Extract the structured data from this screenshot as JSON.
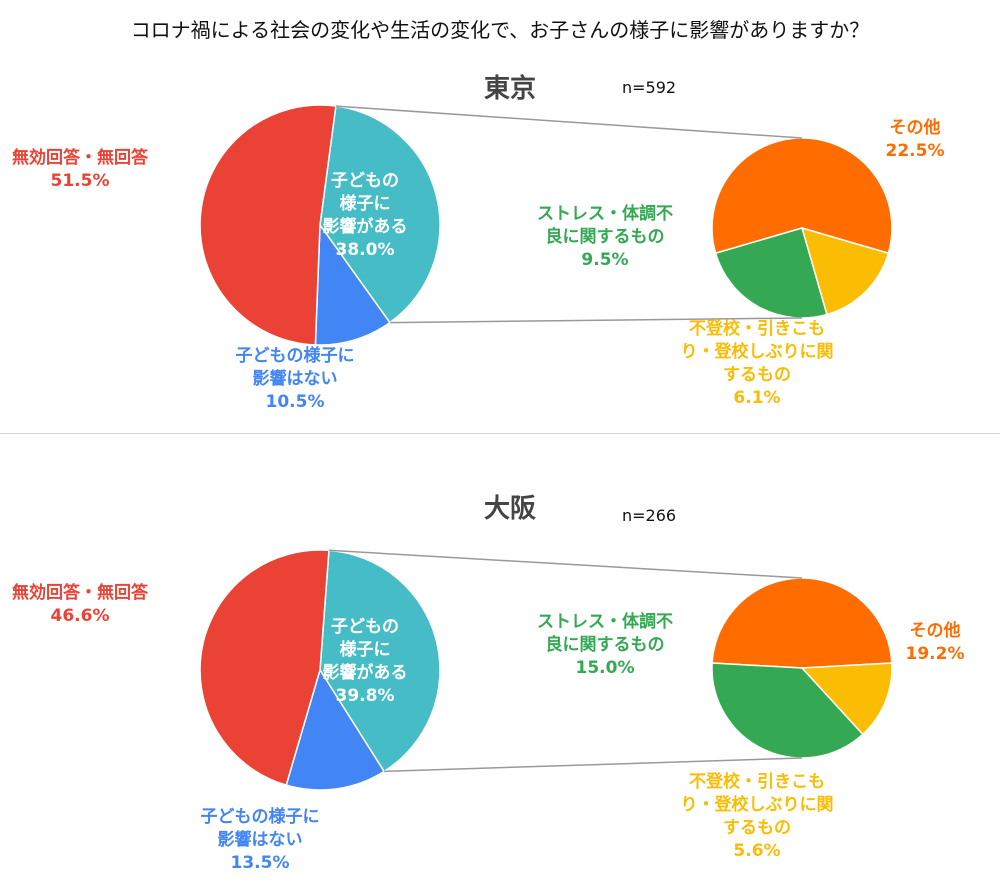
{
  "title": "コロナ禍による社会の変化や生活の変化で、お子さんの様子に影響がありますか？",
  "colors": {
    "no_answer": "#EA4335",
    "affected": "#46BDC6",
    "not_affected": "#4285F4",
    "other": "#FF6D01",
    "stress": "#34A853",
    "truancy": "#FBBC04",
    "connector": "#999999"
  },
  "chart_data": [
    {
      "type": "pie",
      "region": "東京",
      "n_label": "n=592",
      "main": {
        "slices": [
          {
            "key": "affected",
            "label_lines": [
              "子どもの",
              "様子に",
              "影響がある"
            ],
            "value_label": "38.0%",
            "value": 38.0
          },
          {
            "key": "not_affected",
            "label_lines": [
              "子どもの様子に",
              "影響はない"
            ],
            "value_label": "10.5%",
            "value": 10.5
          },
          {
            "key": "no_answer",
            "label_lines": [
              "無効回答・無回答"
            ],
            "value_label": "51.5%",
            "value": 51.5
          }
        ]
      },
      "breakdown": {
        "slices": [
          {
            "key": "other",
            "label_lines": [
              "その他"
            ],
            "value_label": "22.5%",
            "value": 22.5
          },
          {
            "key": "truancy",
            "label_lines": [
              "不登校・引きこも",
              "り・登校しぶりに関",
              "するもの"
            ],
            "value_label": "6.1%",
            "value": 6.1
          },
          {
            "key": "stress",
            "label_lines": [
              "ストレス・体調不",
              "良に関するもの"
            ],
            "value_label": "9.5%",
            "value": 9.5
          }
        ]
      }
    },
    {
      "type": "pie",
      "region": "大阪",
      "n_label": "n=266",
      "main": {
        "slices": [
          {
            "key": "affected",
            "label_lines": [
              "子どもの",
              "様子に",
              "影響がある"
            ],
            "value_label": "39.8%",
            "value": 39.8
          },
          {
            "key": "not_affected",
            "label_lines": [
              "子どもの様子に",
              "影響はない"
            ],
            "value_label": "13.5%",
            "value": 13.5
          },
          {
            "key": "no_answer",
            "label_lines": [
              "無効回答・無回答"
            ],
            "value_label": "46.6%",
            "value": 46.6
          }
        ]
      },
      "breakdown": {
        "slices": [
          {
            "key": "other",
            "label_lines": [
              "その他"
            ],
            "value_label": "19.2%",
            "value": 19.2
          },
          {
            "key": "truancy",
            "label_lines": [
              "不登校・引きこも",
              "り・登校しぶりに関",
              "するもの"
            ],
            "value_label": "5.6%",
            "value": 5.6
          },
          {
            "key": "stress",
            "label_lines": [
              "ストレス・体調不",
              "良に関するもの"
            ],
            "value_label": "15.0%",
            "value": 15.0
          }
        ]
      }
    }
  ]
}
